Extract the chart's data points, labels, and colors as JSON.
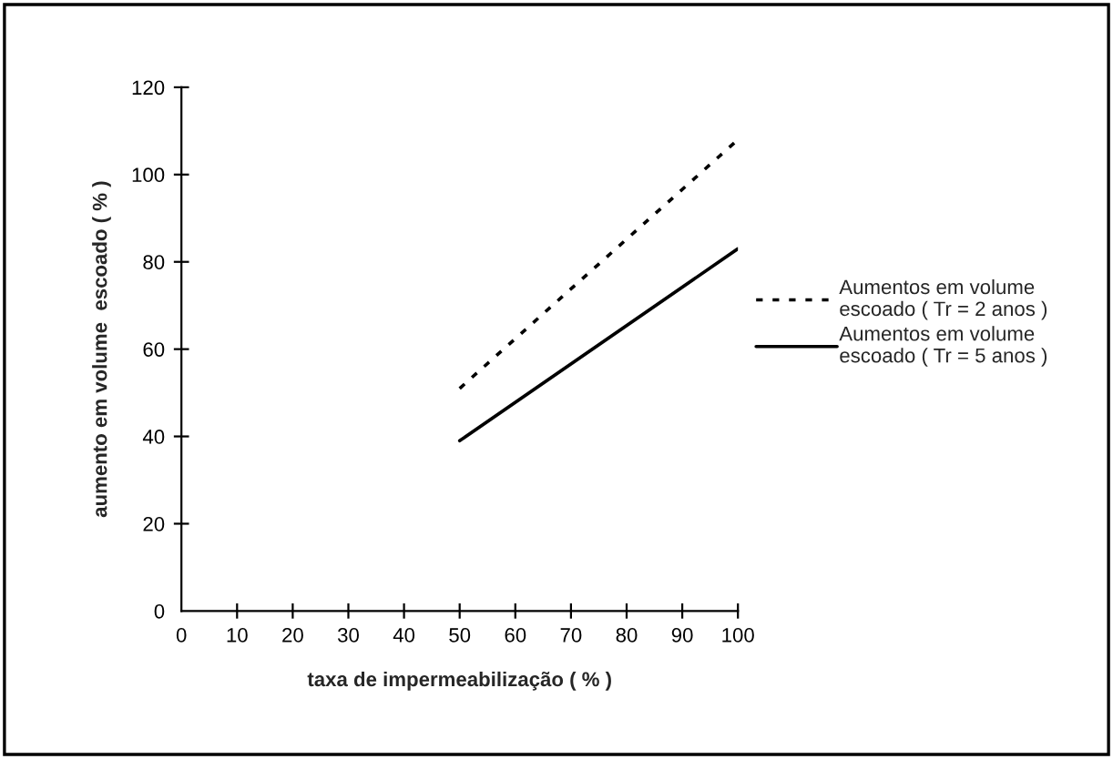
{
  "chart_data": {
    "type": "line",
    "xlabel": "taxa de impermeabilização ( % )",
    "ylabel": "aumento em volume  escoado ( % )",
    "x": [
      50,
      100
    ],
    "series": [
      {
        "name": "Aumentos em volume\nescoado ( Tr = 2 anos )",
        "color": "#000000",
        "values": [
          51,
          108
        ],
        "line_style": "dotted"
      },
      {
        "name": "Aumentos em volume\nescoado ( Tr = 5 anos )",
        "color": "#000000",
        "values": [
          39,
          83
        ],
        "line_style": "solid"
      }
    ],
    "xlim": [
      0,
      100
    ],
    "xticks": [
      0,
      10,
      20,
      30,
      40,
      50,
      60,
      70,
      80,
      90,
      100
    ],
    "ylim": [
      0,
      120
    ],
    "yticks": [
      0,
      20,
      40,
      60,
      80,
      100,
      120
    ],
    "grid": false,
    "legend": "right",
    "marker": "none"
  }
}
